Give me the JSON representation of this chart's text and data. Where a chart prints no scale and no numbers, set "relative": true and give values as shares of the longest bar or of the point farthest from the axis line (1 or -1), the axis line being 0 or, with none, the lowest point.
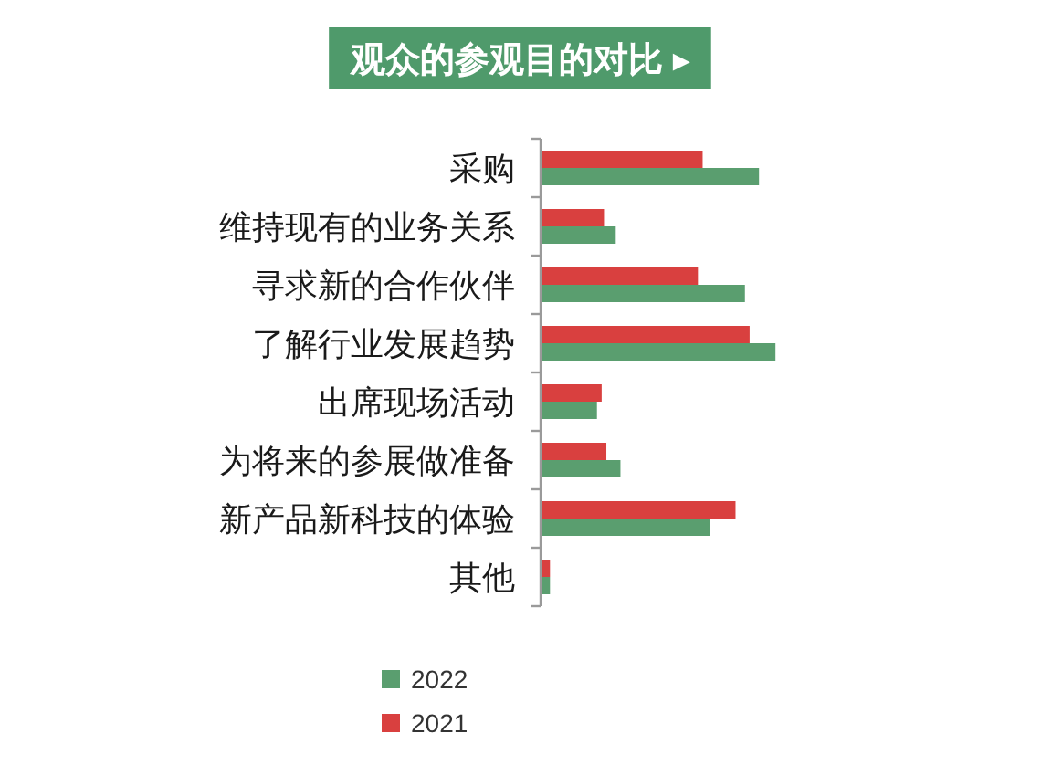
{
  "chart_data": {
    "type": "bar",
    "orientation": "horizontal",
    "relative": true,
    "title": "观众的参观目的对比 ▸",
    "categories": [
      "采购",
      "维持现有的业务关系",
      "寻求新的合作伙伴",
      "了解行业发展趋势",
      "出席现场活动",
      "为将来的参展做准备",
      "新产品新科技的体验",
      "其他"
    ],
    "series": [
      {
        "name": "2022",
        "color": "#5a9e6f",
        "values": [
          0.93,
          0.32,
          0.87,
          1,
          0.24,
          0.34,
          0.72,
          0.04
        ]
      },
      {
        "name": "2021",
        "color": "#d9403f",
        "values": [
          0.69,
          0.27,
          0.67,
          0.89,
          0.26,
          0.28,
          0.83,
          0.04
        ]
      }
    ],
    "legend": "bottom"
  }
}
